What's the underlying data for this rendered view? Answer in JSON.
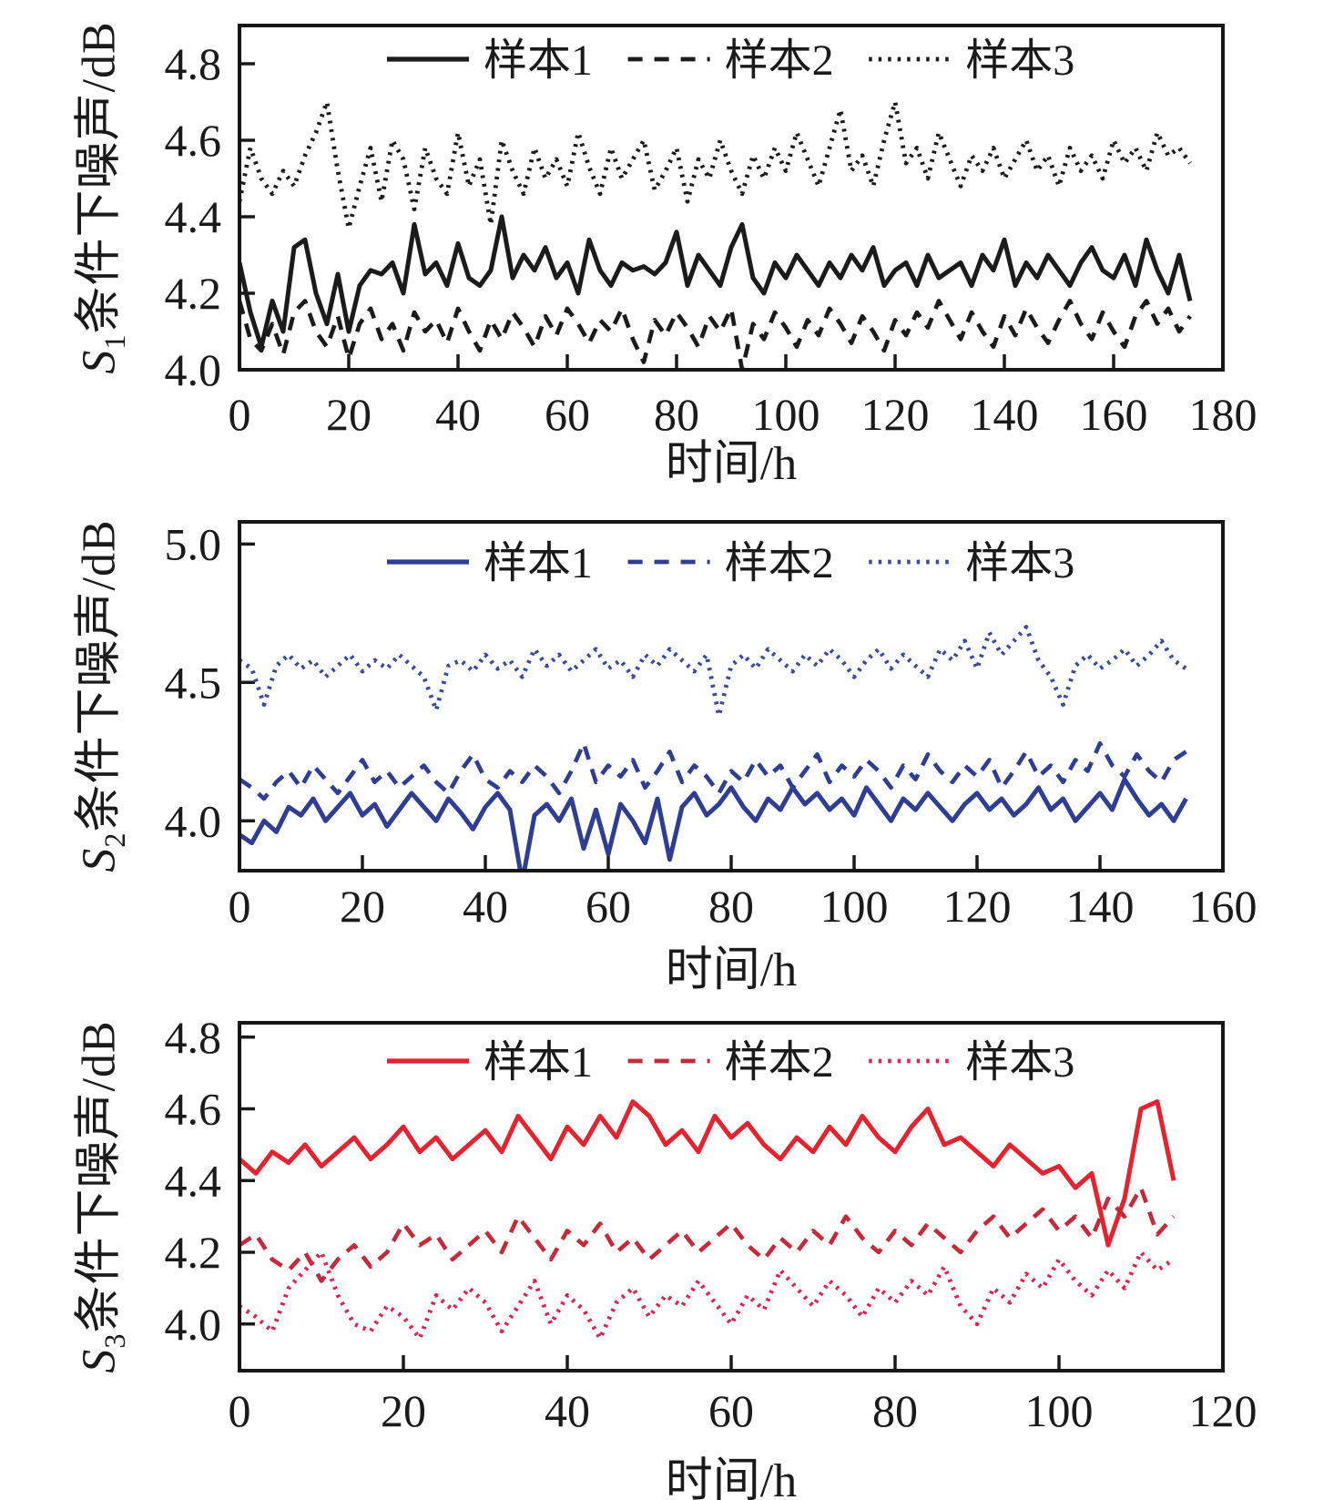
{
  "page": {
    "background": "#ffffff",
    "text_color": "#1a1a1a"
  },
  "chart_data": [
    {
      "id": "chart-s1",
      "type": "line",
      "title": "",
      "xlabel": "时间/h",
      "ylabel": "S1条件下噪声/dB",
      "ylabel_var": "S",
      "ylabel_sub": "1",
      "ylabel_rest": "条件下噪声/dB",
      "xlim": [
        0,
        180
      ],
      "xticks": [
        0,
        20,
        40,
        60,
        80,
        100,
        120,
        140,
        160,
        180
      ],
      "ylim": [
        4.0,
        4.9
      ],
      "yticks": [
        4.0,
        4.2,
        4.4,
        4.6,
        4.8
      ],
      "grid": false,
      "legend_position": "top-inside",
      "legend": [
        "样本1",
        "样本2",
        "样本3"
      ],
      "series": [
        {
          "name": "样本1",
          "style": "solid",
          "color": "#1b1b1b",
          "x_start": 0,
          "x_step": 2,
          "values": [
            4.28,
            4.15,
            4.06,
            4.18,
            4.1,
            4.32,
            4.34,
            4.2,
            4.12,
            4.25,
            4.1,
            4.22,
            4.26,
            4.25,
            4.28,
            4.2,
            4.38,
            4.25,
            4.28,
            4.22,
            4.33,
            4.24,
            4.22,
            4.26,
            4.4,
            4.24,
            4.3,
            4.26,
            4.32,
            4.24,
            4.28,
            4.2,
            4.34,
            4.26,
            4.22,
            4.28,
            4.26,
            4.27,
            4.25,
            4.28,
            4.36,
            4.22,
            4.3,
            4.26,
            4.22,
            4.32,
            4.38,
            4.24,
            4.2,
            4.28,
            4.24,
            4.3,
            4.26,
            4.22,
            4.28,
            4.24,
            4.3,
            4.26,
            4.32,
            4.22,
            4.26,
            4.28,
            4.22,
            4.3,
            4.24,
            4.26,
            4.28,
            4.22,
            4.3,
            4.26,
            4.34,
            4.22,
            4.28,
            4.24,
            4.3,
            4.26,
            4.22,
            4.28,
            4.32,
            4.26,
            4.24,
            4.3,
            4.22,
            4.34,
            4.26,
            4.2,
            4.3,
            4.18
          ]
        },
        {
          "name": "样本2",
          "style": "dashed",
          "color": "#1b1b1b",
          "x_start": 0,
          "x_step": 2,
          "values": [
            4.18,
            4.08,
            4.05,
            4.12,
            4.04,
            4.15,
            4.18,
            4.1,
            4.06,
            4.14,
            4.03,
            4.12,
            4.16,
            4.08,
            4.12,
            4.05,
            4.15,
            4.1,
            4.13,
            4.07,
            4.16,
            4.1,
            4.05,
            4.13,
            4.08,
            4.15,
            4.11,
            4.06,
            4.14,
            4.09,
            4.16,
            4.12,
            4.07,
            4.13,
            4.1,
            4.16,
            4.08,
            4.02,
            4.13,
            4.09,
            4.15,
            4.11,
            4.06,
            4.14,
            4.1,
            4.16,
            4.0,
            4.12,
            4.08,
            4.15,
            4.11,
            4.06,
            4.13,
            4.09,
            4.16,
            4.12,
            4.07,
            4.14,
            4.1,
            4.05,
            4.13,
            4.09,
            4.15,
            4.11,
            4.18,
            4.13,
            4.08,
            4.15,
            4.1,
            4.06,
            4.14,
            4.09,
            4.16,
            4.11,
            4.07,
            4.13,
            4.18,
            4.12,
            4.08,
            4.15,
            4.1,
            4.06,
            4.14,
            4.18,
            4.12,
            4.16,
            4.1,
            4.14
          ]
        },
        {
          "name": "样本3",
          "style": "dotted",
          "color": "#1b1b1b",
          "x_start": 0,
          "x_step": 2,
          "values": [
            4.44,
            4.58,
            4.5,
            4.46,
            4.52,
            4.48,
            4.56,
            4.62,
            4.7,
            4.52,
            4.37,
            4.48,
            4.58,
            4.44,
            4.6,
            4.55,
            4.42,
            4.58,
            4.5,
            4.46,
            4.62,
            4.48,
            4.55,
            4.38,
            4.6,
            4.52,
            4.46,
            4.58,
            4.5,
            4.55,
            4.48,
            4.62,
            4.53,
            4.46,
            4.58,
            4.5,
            4.55,
            4.6,
            4.47,
            4.52,
            4.58,
            4.44,
            4.55,
            4.5,
            4.6,
            4.52,
            4.46,
            4.56,
            4.5,
            4.58,
            4.52,
            4.62,
            4.55,
            4.48,
            4.58,
            4.68,
            4.52,
            4.56,
            4.48,
            4.6,
            4.7,
            4.54,
            4.58,
            4.5,
            4.62,
            4.55,
            4.48,
            4.56,
            4.52,
            4.58,
            4.5,
            4.55,
            4.6,
            4.52,
            4.56,
            4.48,
            4.58,
            4.52,
            4.56,
            4.5,
            4.6,
            4.54,
            4.58,
            4.52,
            4.62,
            4.56,
            4.58,
            4.54
          ]
        }
      ]
    },
    {
      "id": "chart-s2",
      "type": "line",
      "title": "",
      "xlabel": "时间/h",
      "ylabel": "S2条件下噪声/dB",
      "ylabel_var": "S",
      "ylabel_sub": "2",
      "ylabel_rest": "条件下噪声/dB",
      "xlim": [
        0,
        160
      ],
      "xticks": [
        0,
        20,
        40,
        60,
        80,
        100,
        120,
        140,
        160
      ],
      "ylim": [
        3.82,
        5.08
      ],
      "yticks": [
        4.0,
        4.5,
        5.0
      ],
      "grid": false,
      "legend_position": "top-inside",
      "legend": [
        "样本1",
        "样本2",
        "样本3"
      ],
      "series": [
        {
          "name": "样本1",
          "style": "solid",
          "color": "#2f3d92",
          "x_start": 0,
          "x_step": 2,
          "values": [
            3.95,
            3.92,
            4.0,
            3.96,
            4.05,
            4.02,
            4.08,
            4.0,
            4.05,
            4.1,
            4.02,
            4.06,
            3.98,
            4.04,
            4.1,
            4.05,
            4.0,
            4.08,
            4.03,
            3.97,
            4.05,
            4.1,
            4.04,
            3.78,
            4.02,
            4.06,
            4.0,
            4.08,
            3.9,
            4.04,
            3.88,
            4.06,
            4.0,
            3.92,
            4.08,
            3.86,
            4.05,
            4.1,
            4.02,
            4.06,
            4.12,
            4.05,
            4.0,
            4.08,
            4.04,
            4.12,
            4.06,
            4.1,
            4.04,
            4.08,
            4.02,
            4.12,
            4.06,
            4.0,
            4.08,
            4.04,
            4.1,
            4.05,
            4.0,
            4.06,
            4.1,
            4.04,
            4.08,
            4.02,
            4.06,
            4.12,
            4.04,
            4.08,
            4.0,
            4.05,
            4.1,
            4.04,
            4.15,
            4.08,
            4.02,
            4.06,
            4.0,
            4.08
          ]
        },
        {
          "name": "样本2",
          "style": "dashed",
          "color": "#2f3d92",
          "x_start": 0,
          "x_step": 2,
          "values": [
            4.15,
            4.12,
            4.08,
            4.14,
            4.18,
            4.12,
            4.2,
            4.15,
            4.1,
            4.16,
            4.22,
            4.14,
            4.18,
            4.12,
            4.16,
            4.2,
            4.14,
            4.1,
            4.18,
            4.24,
            4.15,
            4.12,
            4.18,
            4.14,
            4.2,
            4.16,
            4.1,
            4.18,
            4.28,
            4.14,
            4.2,
            4.16,
            4.22,
            4.12,
            4.18,
            4.25,
            4.14,
            4.2,
            4.16,
            4.1,
            4.18,
            4.14,
            4.22,
            4.16,
            4.2,
            4.12,
            4.18,
            4.24,
            4.14,
            4.2,
            4.16,
            4.22,
            4.18,
            4.12,
            4.2,
            4.15,
            4.24,
            4.18,
            4.14,
            4.2,
            4.16,
            4.22,
            4.12,
            4.18,
            4.25,
            4.16,
            4.2,
            4.14,
            4.22,
            4.18,
            4.28,
            4.2,
            4.16,
            4.24,
            4.18,
            4.14,
            4.22,
            4.25
          ]
        },
        {
          "name": "样本3",
          "style": "dotted",
          "color": "#3a489e",
          "x_start": 0,
          "x_step": 2,
          "values": [
            4.58,
            4.55,
            4.42,
            4.56,
            4.6,
            4.55,
            4.58,
            4.52,
            4.56,
            4.6,
            4.54,
            4.58,
            4.55,
            4.6,
            4.56,
            4.52,
            4.4,
            4.56,
            4.58,
            4.54,
            4.6,
            4.55,
            4.58,
            4.52,
            4.62,
            4.56,
            4.6,
            4.54,
            4.58,
            4.62,
            4.55,
            4.58,
            4.52,
            4.6,
            4.56,
            4.62,
            4.58,
            4.54,
            4.6,
            4.38,
            4.56,
            4.6,
            4.55,
            4.62,
            4.58,
            4.54,
            4.6,
            4.56,
            4.62,
            4.58,
            4.52,
            4.58,
            4.62,
            4.55,
            4.6,
            4.56,
            4.52,
            4.62,
            4.58,
            4.65,
            4.55,
            4.68,
            4.6,
            4.65,
            4.7,
            4.58,
            4.52,
            4.42,
            4.56,
            4.6,
            4.55,
            4.58,
            4.62,
            4.56,
            4.6,
            4.65,
            4.58,
            4.55
          ]
        }
      ]
    },
    {
      "id": "chart-s3",
      "type": "line",
      "title": "",
      "xlabel": "时间/h",
      "ylabel": "S3条件下噪声/dB",
      "ylabel_var": "S",
      "ylabel_sub": "3",
      "ylabel_rest": "条件下噪声/dB",
      "xlim": [
        0,
        120
      ],
      "xticks": [
        0,
        20,
        40,
        60,
        80,
        100,
        120
      ],
      "ylim": [
        3.87,
        4.84
      ],
      "yticks": [
        4.0,
        4.2,
        4.4,
        4.6,
        4.8
      ],
      "grid": false,
      "legend_position": "top-inside",
      "legend": [
        "样本1",
        "样本2",
        "样本3"
      ],
      "series": [
        {
          "name": "样本1",
          "style": "solid",
          "color": "#e52230",
          "x_start": 0,
          "x_step": 2,
          "values": [
            4.46,
            4.42,
            4.48,
            4.45,
            4.5,
            4.44,
            4.48,
            4.52,
            4.46,
            4.5,
            4.55,
            4.48,
            4.52,
            4.46,
            4.5,
            4.54,
            4.48,
            4.58,
            4.52,
            4.46,
            4.55,
            4.5,
            4.58,
            4.52,
            4.62,
            4.58,
            4.5,
            4.54,
            4.48,
            4.58,
            4.52,
            4.56,
            4.5,
            4.46,
            4.52,
            4.48,
            4.55,
            4.5,
            4.58,
            4.52,
            4.48,
            4.55,
            4.6,
            4.5,
            4.52,
            4.48,
            4.44,
            4.5,
            4.46,
            4.42,
            4.44,
            4.38,
            4.42,
            4.22,
            4.35,
            4.6,
            4.62,
            4.4
          ]
        },
        {
          "name": "样本2",
          "style": "dashed",
          "color": "#c42a3a",
          "x_start": 0,
          "x_step": 2,
          "values": [
            4.22,
            4.25,
            4.18,
            4.15,
            4.2,
            4.12,
            4.18,
            4.22,
            4.16,
            4.2,
            4.28,
            4.22,
            4.25,
            4.18,
            4.22,
            4.26,
            4.2,
            4.3,
            4.24,
            4.18,
            4.26,
            4.22,
            4.28,
            4.2,
            4.24,
            4.18,
            4.22,
            4.26,
            4.2,
            4.24,
            4.28,
            4.22,
            4.18,
            4.24,
            4.2,
            4.26,
            4.22,
            4.3,
            4.24,
            4.2,
            4.26,
            4.22,
            4.28,
            4.24,
            4.2,
            4.26,
            4.3,
            4.24,
            4.28,
            4.32,
            4.26,
            4.3,
            4.24,
            4.35,
            4.3,
            4.38,
            4.25,
            4.3
          ]
        },
        {
          "name": "样本3",
          "style": "dotted",
          "color": "#dd2350",
          "x_start": 0,
          "x_step": 2,
          "values": [
            4.05,
            4.02,
            3.98,
            4.1,
            4.15,
            4.2,
            4.08,
            4.0,
            3.98,
            4.05,
            4.02,
            3.96,
            4.08,
            4.04,
            4.1,
            4.06,
            3.98,
            4.05,
            4.12,
            4.0,
            4.08,
            4.04,
            3.96,
            4.06,
            4.1,
            4.02,
            4.08,
            4.05,
            4.12,
            4.06,
            4.0,
            4.08,
            4.04,
            4.15,
            4.1,
            4.05,
            4.12,
            4.08,
            4.02,
            4.1,
            4.06,
            4.12,
            4.08,
            4.16,
            4.05,
            4.0,
            4.1,
            4.06,
            4.14,
            4.1,
            4.18,
            4.12,
            4.08,
            4.15,
            4.1,
            4.2,
            4.15,
            4.18
          ]
        }
      ]
    }
  ]
}
